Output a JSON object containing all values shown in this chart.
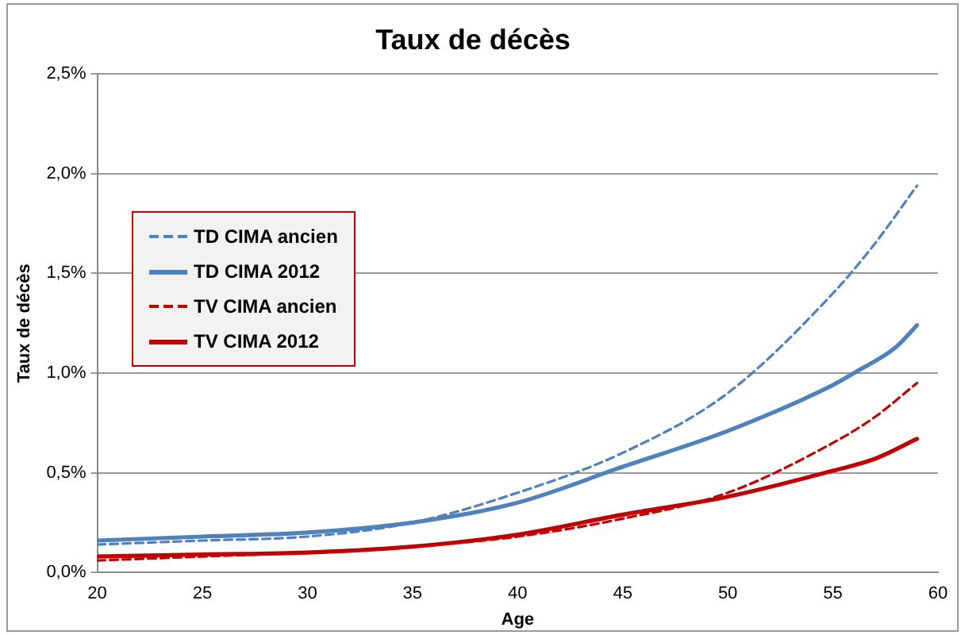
{
  "chart_data": {
    "type": "line",
    "title": "Taux de décès",
    "xlabel": "Age",
    "ylabel": "Taux de décès",
    "xlim": [
      20,
      60
    ],
    "xticks": [
      20,
      25,
      30,
      35,
      40,
      45,
      50,
      55,
      60
    ],
    "ylim": [
      0,
      2.5
    ],
    "yticks": [
      {
        "value": 0,
        "label": "0,0%"
      },
      {
        "value": 0.5,
        "label": "0,5%"
      },
      {
        "value": 1,
        "label": "1,0%"
      },
      {
        "value": 1.5,
        "label": "1,5%"
      },
      {
        "value": 2,
        "label": "2,0%"
      },
      {
        "value": 2.5,
        "label": "2,5%"
      }
    ],
    "grid": "y",
    "legend": "top left",
    "marker": "none",
    "series": [
      {
        "name": "TD CIMA ancien",
        "color": "#4f81bd",
        "line_style": "dashed",
        "x": [
          20,
          25,
          30,
          35,
          40,
          45,
          50,
          55,
          57,
          59
        ],
        "values": [
          0.14,
          0.16,
          0.18,
          0.25,
          0.4,
          0.6,
          0.9,
          1.4,
          1.65,
          1.94
        ]
      },
      {
        "name": "TD CIMA 2012",
        "color": "#4f81bd",
        "line_style": "solid",
        "x": [
          20,
          25,
          30,
          35,
          40,
          45,
          50,
          55,
          56,
          58,
          59
        ],
        "values": [
          0.16,
          0.18,
          0.2,
          0.25,
          0.35,
          0.53,
          0.71,
          0.94,
          1.0,
          1.13,
          1.24
        ]
      },
      {
        "name": "TV CIMA ancien",
        "color": "#c00000",
        "line_style": "dashed",
        "x": [
          20,
          25,
          30,
          35,
          40,
          45,
          50,
          55,
          57,
          59
        ],
        "values": [
          0.06,
          0.08,
          0.1,
          0.13,
          0.18,
          0.27,
          0.4,
          0.65,
          0.78,
          0.95
        ]
      },
      {
        "name": "TV CIMA 2012",
        "color": "#c00000",
        "line_style": "solid",
        "x": [
          20,
          25,
          30,
          35,
          40,
          45,
          50,
          55,
          57,
          59
        ],
        "values": [
          0.08,
          0.09,
          0.1,
          0.13,
          0.19,
          0.29,
          0.38,
          0.51,
          0.57,
          0.67
        ]
      }
    ]
  }
}
